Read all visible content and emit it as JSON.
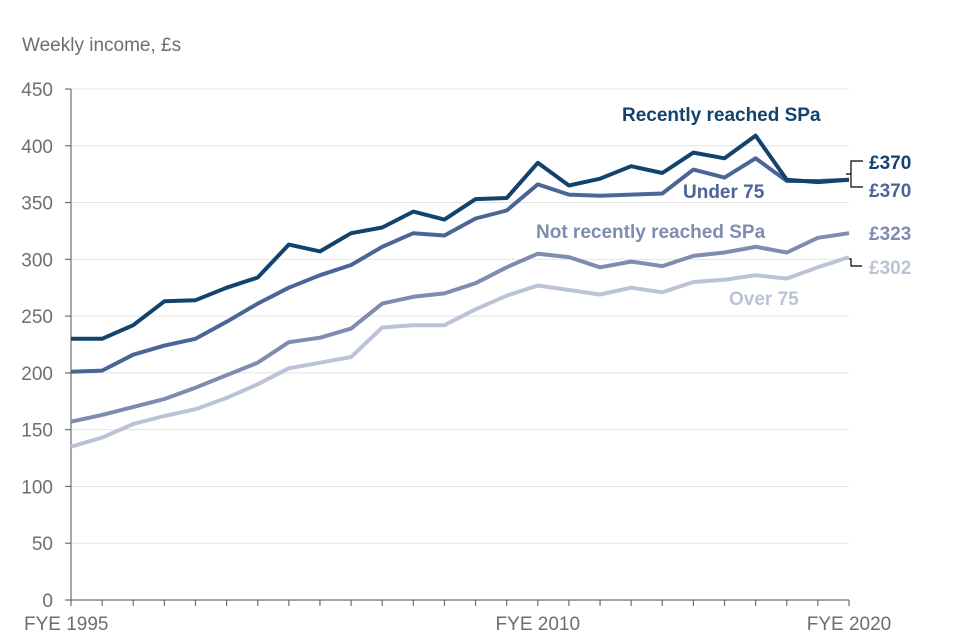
{
  "chart_data": {
    "type": "line",
    "title": "",
    "ylabel": "Weekly income, £s",
    "xlabel": "",
    "ylim": [
      0,
      450
    ],
    "yticks": [
      0,
      50,
      100,
      150,
      200,
      250,
      300,
      350,
      400,
      450
    ],
    "x": [
      1995,
      1996,
      1997,
      1998,
      1999,
      2000,
      2001,
      2002,
      2003,
      2004,
      2005,
      2006,
      2007,
      2008,
      2009,
      2010,
      2011,
      2012,
      2013,
      2014,
      2015,
      2016,
      2017,
      2018,
      2019,
      2020
    ],
    "xtick_labels": [
      {
        "x": 1995,
        "label": "FYE 1995"
      },
      {
        "x": 2010,
        "label": "FYE 2010"
      },
      {
        "x": 2020,
        "label": "FYE 2020"
      }
    ],
    "grid": true,
    "series": [
      {
        "name": "Recently reached SPa",
        "color": "#12436d",
        "values": [
          230,
          230,
          242,
          263,
          264,
          275,
          284,
          313,
          307,
          323,
          328,
          342,
          335,
          353,
          354,
          385,
          365,
          371,
          382,
          376,
          394,
          389,
          409,
          370,
          368,
          370
        ],
        "end_label": "£370"
      },
      {
        "name": "Under 75",
        "color": "#4a6596",
        "values": [
          201,
          202,
          216,
          224,
          230,
          245,
          261,
          275,
          286,
          295,
          311,
          323,
          321,
          336,
          343,
          366,
          357,
          356,
          357,
          358,
          379,
          372,
          389,
          369,
          369,
          370
        ],
        "end_label": "£370"
      },
      {
        "name": "Not recently reached SPa",
        "color": "#7e8cb0",
        "values": [
          157,
          163,
          170,
          177,
          187,
          198,
          209,
          227,
          231,
          239,
          261,
          267,
          270,
          279,
          293,
          305,
          302,
          293,
          298,
          294,
          303,
          306,
          311,
          306,
          319,
          323
        ],
        "end_label": "£323"
      },
      {
        "name": "Over 75",
        "color": "#bbc3d6",
        "values": [
          135,
          143,
          155,
          162,
          168,
          178,
          190,
          204,
          209,
          214,
          240,
          242,
          242,
          256,
          268,
          277,
          273,
          269,
          275,
          271,
          280,
          282,
          286,
          283,
          293,
          302
        ],
        "end_label": "£302"
      }
    ]
  },
  "colors": {
    "axis_text": "#6e6e6e",
    "gridline": "#e4e4e4"
  }
}
